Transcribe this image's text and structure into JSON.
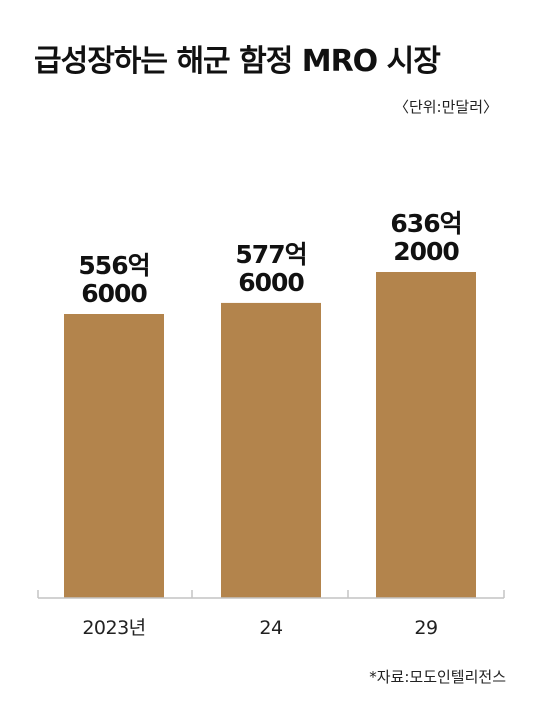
{
  "title": "급성장하는 해군 함정 MRO 시장",
  "unit": "〈단위:만달러〉",
  "source": "*자료:모도인텔리전스",
  "colors": {
    "bar": "#b3844c",
    "axis": "#c4c4c4",
    "text": "#111111"
  },
  "chart_data": {
    "type": "bar",
    "title": "급성장하는 해군 함정 MRO 시장",
    "ylabel": "",
    "xlabel": "",
    "categories": [
      "2023년",
      "24",
      "29"
    ],
    "values": [
      5566000,
      5776000,
      6362000
    ],
    "value_labels": [
      [
        "556억",
        "6000"
      ],
      [
        "577억",
        "6000"
      ],
      [
        "636억",
        "2000"
      ]
    ],
    "grid": false,
    "legend": "none"
  }
}
